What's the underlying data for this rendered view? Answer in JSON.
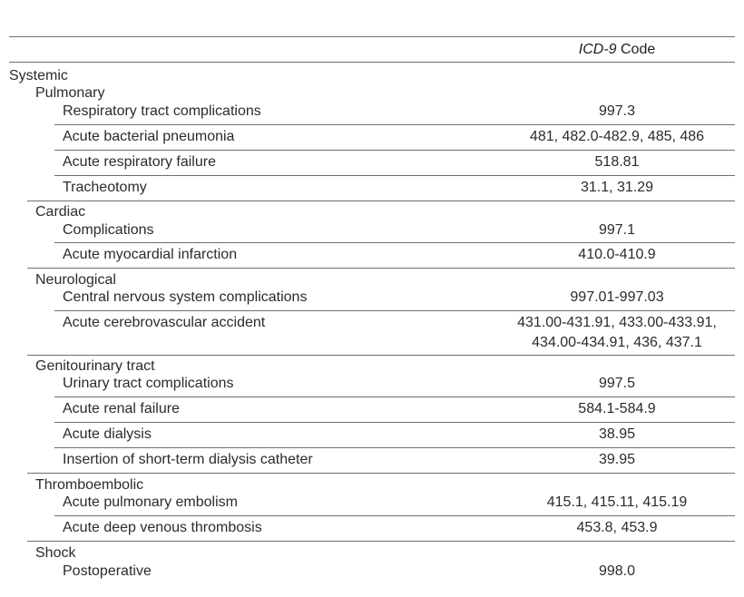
{
  "table": {
    "header": {
      "code_italic": "ICD-9",
      "code_rest": " Code"
    },
    "systemic_label": "Systemic",
    "categories": [
      {
        "label": "Pulmonary",
        "rows": [
          {
            "name": "Respiratory tract complications",
            "code": "997.3"
          },
          {
            "name": "Acute bacterial pneumonia",
            "code": "481, 482.0-482.9, 485, 486"
          },
          {
            "name": "Acute respiratory failure",
            "code": "518.81"
          },
          {
            "name": "Tracheotomy",
            "code": "31.1, 31.29"
          }
        ]
      },
      {
        "label": "Cardiac",
        "rows": [
          {
            "name": "Complications",
            "code": "997.1"
          },
          {
            "name": "Acute myocardial infarction",
            "code": "410.0-410.9"
          }
        ]
      },
      {
        "label": "Neurological",
        "rows": [
          {
            "name": "Central nervous system complications",
            "code": "997.01-997.03"
          },
          {
            "name": "Acute cerebrovascular accident",
            "code": "431.00-431.91, 433.00-433.91,",
            "code2": "434.00-434.91, 436, 437.1"
          }
        ]
      },
      {
        "label": "Genitourinary tract",
        "rows": [
          {
            "name": "Urinary tract complications",
            "code": "997.5"
          },
          {
            "name": "Acute renal failure",
            "code": "584.1-584.9"
          },
          {
            "name": "Acute dialysis",
            "code": "38.95"
          },
          {
            "name": "Insertion of short-term dialysis catheter",
            "code": "39.95"
          }
        ]
      },
      {
        "label": "Thromboembolic",
        "rows": [
          {
            "name": "Acute pulmonary embolism",
            "code": "415.1, 415.11, 415.19"
          },
          {
            "name": "Acute deep venous thrombosis",
            "code": "453.8, 453.9"
          }
        ]
      },
      {
        "label": "Shock",
        "rows": [
          {
            "name": "Postoperative",
            "code": "998.0"
          }
        ]
      }
    ]
  }
}
